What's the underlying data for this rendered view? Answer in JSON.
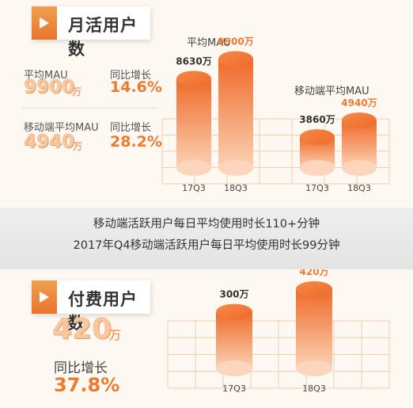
{
  "active_users": {
    "header": "月活用户数",
    "mau_label": "平均MAU",
    "mau_value": "9900",
    "mau_unit": "万",
    "mau_growth_label": "同比增长",
    "mau_growth": "14.6%",
    "mobile_mau_label": "移动端平均MAU",
    "mobile_mau_value": "4940",
    "mobile_mau_unit": "万",
    "mobile_growth_label": "同比增长",
    "mobile_growth": "28.2%"
  },
  "banner": {
    "line1": "移动端活跃用户每日平均使用时长110+分钟",
    "line2": "2017年Q4移动端活跃用户每日平均使用时长99分钟"
  },
  "paying_users": {
    "header": "付费用户数",
    "value": "420",
    "unit": "万",
    "growth_label": "同比增长",
    "growth": "37.8%"
  },
  "colors": {
    "accent": "#ee7a30",
    "accent_light": "#f7c8a0",
    "grid": "#f3cdb0"
  },
  "chart_data": [
    {
      "type": "bar",
      "title": "平均MAU",
      "unit": "万",
      "categories": [
        "17Q3",
        "18Q3"
      ],
      "values": [
        8630,
        9900
      ],
      "labels": [
        "8630万",
        "9900万"
      ]
    },
    {
      "type": "bar",
      "title": "移动端平均MAU",
      "unit": "万",
      "categories": [
        "17Q3",
        "18Q3"
      ],
      "values": [
        3860,
        4940
      ],
      "labels": [
        "3860万",
        "4940万"
      ]
    },
    {
      "type": "bar",
      "title": "",
      "unit": "万",
      "categories": [
        "17Q3",
        "18Q3"
      ],
      "values": [
        300,
        420
      ],
      "labels": [
        "300万",
        "420万"
      ]
    }
  ]
}
